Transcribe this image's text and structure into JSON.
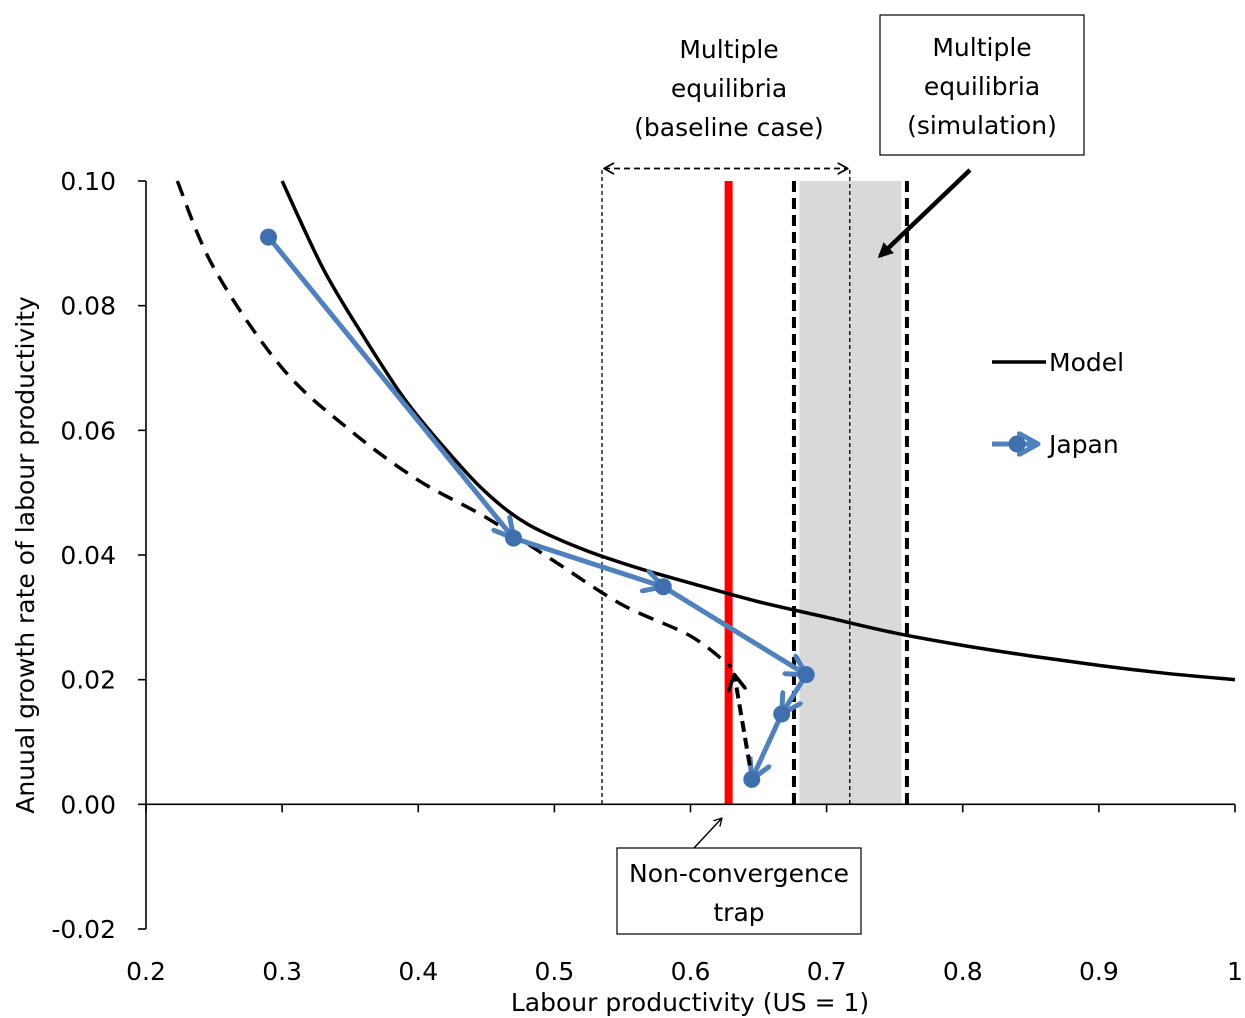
{
  "chart_data": {
    "type": "line",
    "xlabel": "Labour productivity (US = 1)",
    "ylabel": "Anuual growth rate of labour productivity",
    "xlim": [
      0.2,
      1.0
    ],
    "ylim": [
      -0.02,
      0.1
    ],
    "x_ticks": [
      "0.2",
      "0.3",
      "0.4",
      "0.5",
      "0.6",
      "0.7",
      "0.8",
      "0.9",
      "1"
    ],
    "y_ticks": [
      "-0.02",
      "0.00",
      "0.02",
      "0.04",
      "0.06",
      "0.08",
      "0.10"
    ],
    "grid": false,
    "legend_position": "right",
    "series": [
      {
        "name": "Model",
        "style": "solid",
        "color": "#000000",
        "x": [
          0.3,
          0.33,
          0.36,
          0.39,
          0.42,
          0.45,
          0.48,
          0.52,
          0.56,
          0.6,
          0.65,
          0.7,
          0.75,
          0.8,
          0.85,
          0.9,
          0.95,
          1.0
        ],
        "y": [
          0.1,
          0.086,
          0.075,
          0.065,
          0.057,
          0.05,
          0.045,
          0.041,
          0.038,
          0.0355,
          0.0325,
          0.03,
          0.0275,
          0.0255,
          0.0238,
          0.0223,
          0.021,
          0.02
        ]
      },
      {
        "style": "dashed",
        "color": "#000000",
        "x": [
          0.223,
          0.25,
          0.3,
          0.35,
          0.4,
          0.45,
          0.5,
          0.55,
          0.6,
          0.63
        ],
        "y": [
          0.1,
          0.086,
          0.07,
          0.06,
          0.052,
          0.046,
          0.039,
          0.032,
          0.027,
          0.022
        ]
      },
      {
        "name": "Japan",
        "style": "arrows-with-markers",
        "color": "#4F81BD",
        "x": [
          0.29,
          0.47,
          0.58,
          0.685,
          0.667,
          0.645
        ],
        "y": [
          0.091,
          0.0427,
          0.0349,
          0.0208,
          0.0145,
          0.004
        ]
      }
    ],
    "dashed_return_arrow": {
      "x": [
        0.645,
        0.63
      ],
      "y": [
        0.004,
        0.0205
      ]
    },
    "vertical_lines": [
      {
        "x": 0.535,
        "style": "thin-dashed"
      },
      {
        "x": 0.717,
        "style": "thin-dashed"
      },
      {
        "x": 0.628,
        "style": "solid",
        "color": "#FF0000"
      },
      {
        "x": 0.676,
        "style": "thick-dashed"
      },
      {
        "x": 0.759,
        "style": "thick-dashed"
      }
    ],
    "shaded_band": {
      "x": [
        0.68,
        0.755
      ],
      "y": [
        0.0,
        0.1
      ],
      "color": "#D9D9D9"
    },
    "baseline_range_arrow": {
      "x": [
        0.535,
        0.717
      ],
      "y": 0.102
    },
    "annotations": {
      "baseline_line1": "Multiple",
      "baseline_line2": "equilibria",
      "baseline_line3": "(baseline case)",
      "simulation_line1": "Multiple",
      "simulation_line2": "equilibria",
      "simulation_line3": "(simulation)",
      "trap_line1": "Non-convergence",
      "trap_line2": "trap"
    }
  }
}
